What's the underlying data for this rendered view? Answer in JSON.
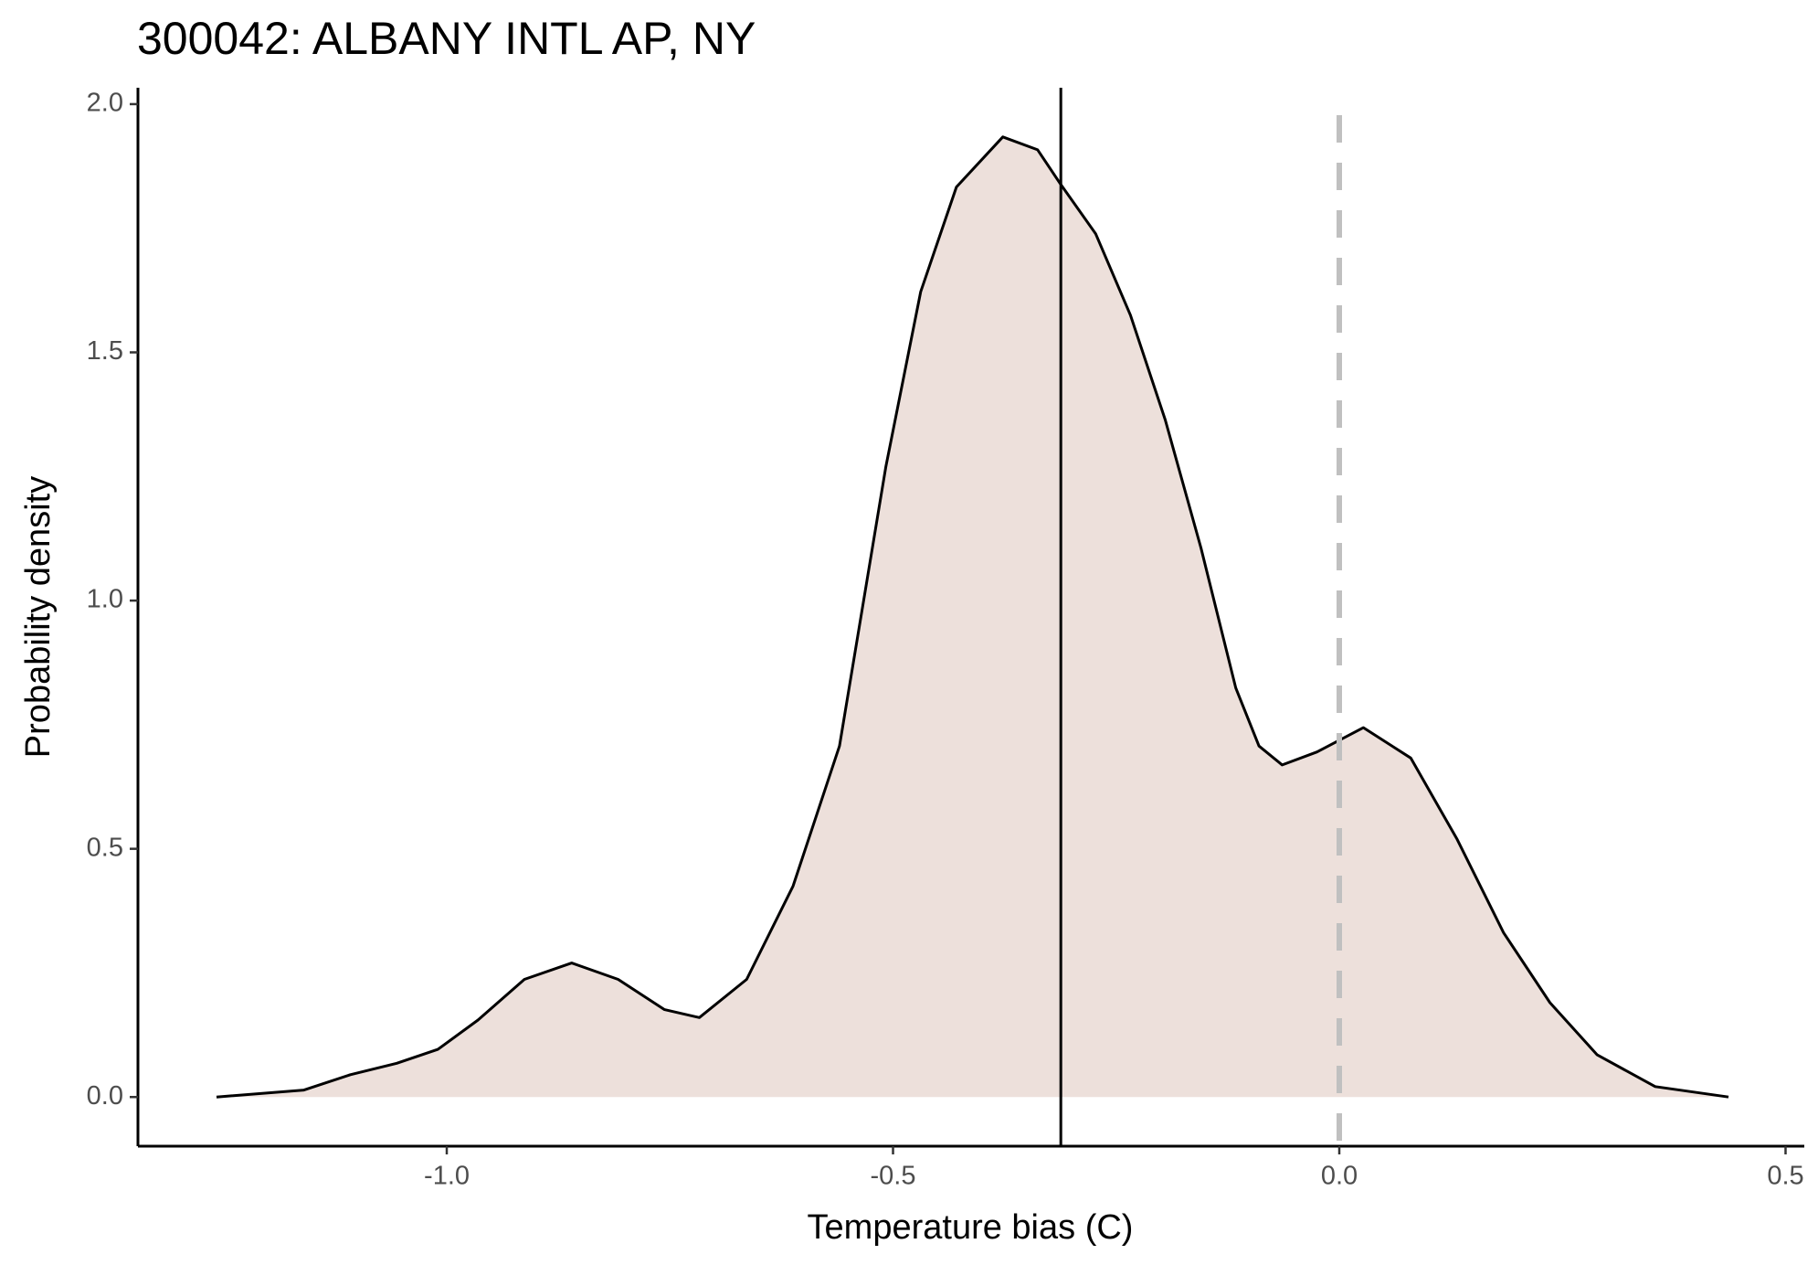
{
  "chart_data": {
    "type": "area",
    "title": "300042: ALBANY INTL AP, NY",
    "x_label": "Temperature bias (C)",
    "y_label": "Probability density",
    "x": [
      -1.258,
      -1.16,
      -1.108,
      -1.056,
      -1.01,
      -0.965,
      -0.913,
      -0.86,
      -0.808,
      -0.756,
      -0.717,
      -0.664,
      -0.612,
      -0.56,
      -0.508,
      -0.469,
      -0.429,
      -0.377,
      -0.338,
      -0.312,
      -0.273,
      -0.234,
      -0.195,
      -0.155,
      -0.116,
      -0.09,
      -0.064,
      -0.025,
      0.027,
      0.08,
      0.132,
      0.184,
      0.236,
      0.289,
      0.354,
      0.436
    ],
    "values": [
      0,
      0.014,
      0.045,
      0.068,
      0.096,
      0.155,
      0.237,
      0.27,
      0.237,
      0.176,
      0.16,
      0.237,
      0.425,
      0.707,
      1.27,
      1.622,
      1.833,
      1.934,
      1.908,
      1.838,
      1.739,
      1.575,
      1.364,
      1.106,
      0.824,
      0.707,
      0.669,
      0.695,
      0.744,
      0.683,
      0.519,
      0.331,
      0.19,
      0.085,
      0.021,
      0
    ],
    "color": "#ede0db",
    "line_color": "#000000",
    "mean_line": -0.312,
    "reference_line": 0,
    "reference_color": "#c0c0c0",
    "xlim": [
      -1.346,
      0.521
    ],
    "ylim": [
      -0.099,
      2.033
    ],
    "xticks": [
      {
        "value": -1,
        "label": "-1.0"
      },
      {
        "value": -0.5,
        "label": "-0.5"
      },
      {
        "value": 0,
        "label": "0.0"
      },
      {
        "value": 0.5,
        "label": "0.5"
      }
    ],
    "yticks": [
      {
        "value": 0,
        "label": "0.0"
      },
      {
        "value": 0.5,
        "label": "0.5"
      },
      {
        "value": 1,
        "label": "1.0"
      },
      {
        "value": 1.5,
        "label": "1.5"
      },
      {
        "value": 2,
        "label": "2.0"
      }
    ],
    "grid": false
  }
}
